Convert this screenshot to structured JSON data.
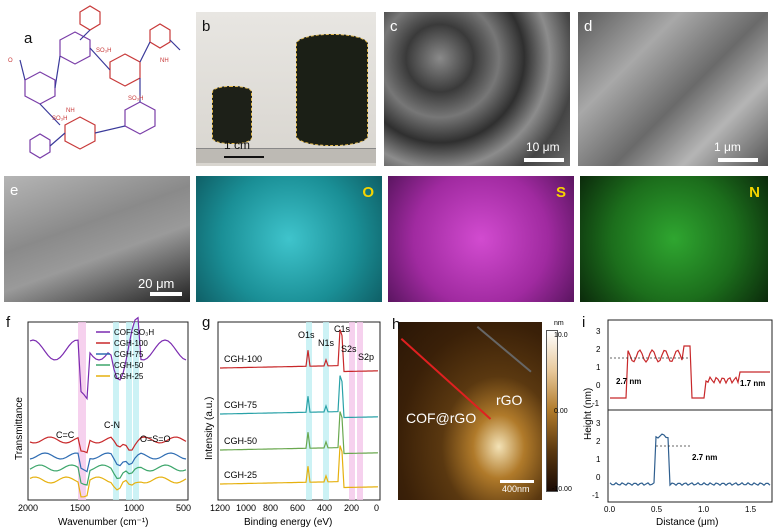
{
  "panel_labels": {
    "a": "a",
    "b": "b",
    "c": "c",
    "d": "d",
    "e": "e",
    "f": "f",
    "g": "g",
    "h": "h",
    "i": "i"
  },
  "a": {
    "groups": {
      "so3h": "SO₃H",
      "nh": "NH",
      "o": "O"
    }
  },
  "b": {
    "scale": "1 cm"
  },
  "c": {
    "scale": "10 μm"
  },
  "d": {
    "scale": "1 μm"
  },
  "e": {
    "scale": "20 μm"
  },
  "maps": [
    {
      "element": "O",
      "color": "#29b9c0"
    },
    {
      "element": "S",
      "color": "#c83fc6"
    },
    {
      "element": "N",
      "color": "#2fa630"
    }
  ],
  "chart_f": {
    "type": "line",
    "xlabel": "Wavenumber (cm⁻¹)",
    "ylabel": "Transmittance",
    "xlim": [
      2000,
      500
    ],
    "xticks": [
      "2000",
      "1500",
      "1000",
      "500"
    ],
    "legend": [
      {
        "name": "COF-SO₃H",
        "color": "#7b2bb0"
      },
      {
        "name": "CGH-100",
        "color": "#c8282a"
      },
      {
        "name": "CGH-75",
        "color": "#2f6db3"
      },
      {
        "name": "CGH-50",
        "color": "#3da66b"
      },
      {
        "name": "CGH-25",
        "color": "#e6b10f"
      }
    ],
    "annotations": {
      "cc": "C=C",
      "cn": "C-N",
      "oso": "O=S=O"
    }
  },
  "chart_g": {
    "type": "line",
    "xlabel": "Binding energy (eV)",
    "ylabel": "Intensity (a.u.)",
    "xlim": [
      1200,
      0
    ],
    "xticks": [
      "1200",
      "1000",
      "800",
      "600",
      "400",
      "200",
      "0"
    ],
    "series_labels": [
      "CGH-100",
      "CGH-75",
      "CGH-50",
      "CGH-25"
    ],
    "peaks": {
      "o1s": "O1s",
      "n1s": "N1s",
      "c1s": "C1s",
      "s2s": "S2s",
      "s2p": "S2p"
    }
  },
  "h": {
    "colorbar_unit": "nm",
    "colorbar_ticks": [
      "10.0",
      "0.00",
      "-10.00"
    ],
    "labels": {
      "rgo": "rGO",
      "cof": "COF@rGO"
    },
    "scale": "400nm"
  },
  "chart_i": {
    "type": "line",
    "xlabel": "Distance (μm)",
    "ylabel": "Height (nm)",
    "xticks": [
      "0.0",
      "0.5",
      "1.0",
      "1.5"
    ],
    "yticks_top": [
      "3",
      "2",
      "1",
      "0",
      "-1"
    ],
    "yticks_bottom": [
      "3",
      "2",
      "1",
      "0",
      "-1"
    ],
    "labels_top": [
      "2.7 nm",
      "1.7 nm"
    ],
    "labels_bottom": [
      "2.7 nm"
    ]
  }
}
